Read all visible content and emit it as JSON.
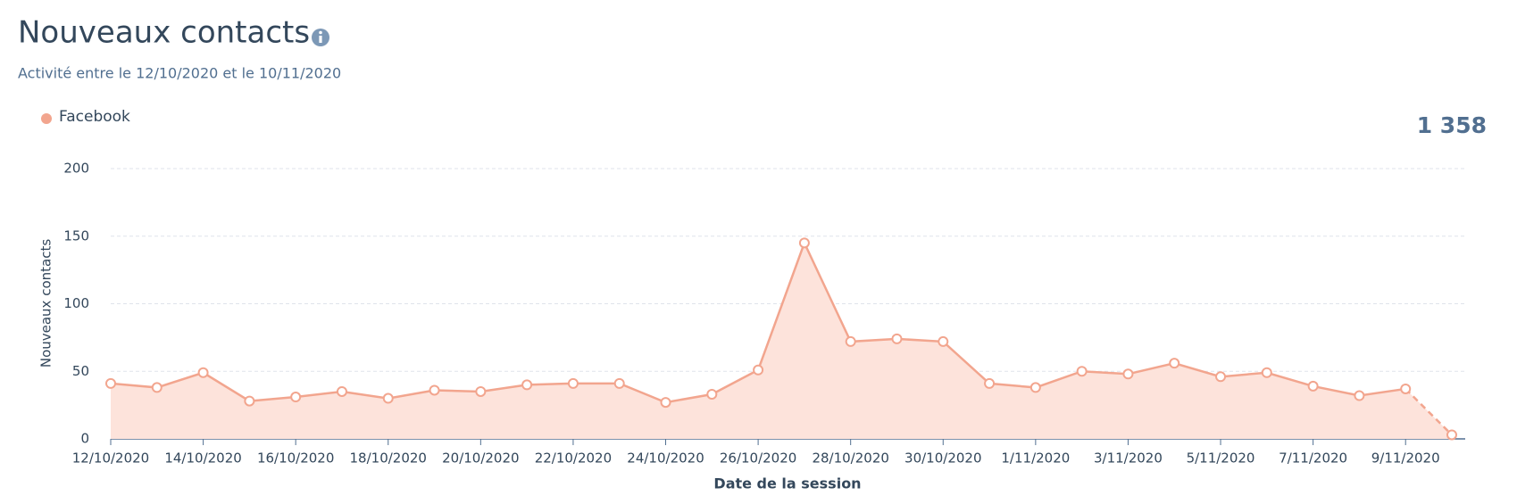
{
  "chart_data": {
    "type": "line",
    "title": "Nouveaux contacts",
    "subtitle": "Activité entre le 12/10/2020 et le 10/11/2020",
    "total": "1 358",
    "x_label": "Date de la session",
    "y_label": "Nouveaux contacts",
    "categories": [
      "12/10/2020",
      null,
      "14/10/2020",
      null,
      "16/10/2020",
      null,
      "18/10/2020",
      null,
      "20/10/2020",
      null,
      "22/10/2020",
      null,
      "24/10/2020",
      null,
      "26/10/2020",
      null,
      "28/10/2020",
      null,
      "30/10/2020",
      null,
      "1/11/2020",
      null,
      "3/11/2020",
      null,
      "5/11/2020",
      null,
      "7/11/2020",
      null,
      "9/11/2020",
      null
    ],
    "series": [
      {
        "name": "Facebook",
        "color": "#f2a58e",
        "values": [
          41,
          38,
          49,
          28,
          31,
          35,
          30,
          36,
          35,
          40,
          41,
          41,
          27,
          33,
          51,
          145,
          72,
          74,
          72,
          41,
          38,
          50,
          48,
          56,
          46,
          49,
          39,
          32,
          37,
          3
        ]
      }
    ],
    "area_color": "#fde3db",
    "dashed_last": true,
    "ylim": [
      0,
      200
    ],
    "yticks": [
      0,
      50,
      100,
      150,
      200
    ],
    "grid": true
  }
}
